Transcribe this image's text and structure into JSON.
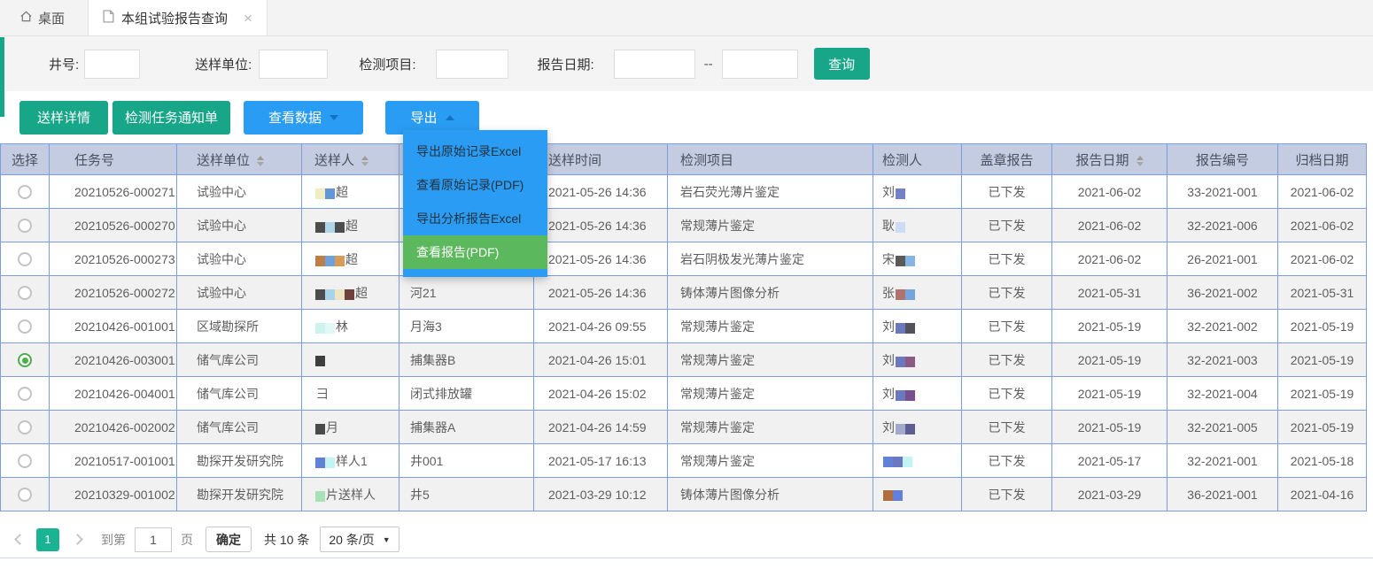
{
  "window": {
    "tab_home": "桌面",
    "tab_active": "本组试验报告查询",
    "tab_close": "×"
  },
  "filter": {
    "well_label": "井号:",
    "org_label": "送样单位:",
    "item_label": "检测项目:",
    "date_label": "报告日期:",
    "date_separator": "--",
    "search_button": "查询"
  },
  "toolbar": {
    "sample_detail": "送样详情",
    "task_notice": "检测任务通知单",
    "view_data": "查看数据",
    "export": "导出"
  },
  "export_menu": {
    "items": [
      "导出原始记录Excel",
      "查看原始记录(PDF)",
      "导出分析报告Excel",
      "查看报告(PDF)"
    ],
    "active_index": 3
  },
  "table": {
    "columns": [
      {
        "key": "select",
        "label": "选择",
        "sortable": false
      },
      {
        "key": "task",
        "label": "任务号",
        "sortable": false
      },
      {
        "key": "org",
        "label": "送样单位",
        "sortable": true
      },
      {
        "key": "sampler",
        "label": "送样人",
        "sortable": true
      },
      {
        "key": "well",
        "label": "",
        "sortable": false
      },
      {
        "key": "time",
        "label": "送样时间",
        "sortable": false
      },
      {
        "key": "item",
        "label": "检测项目",
        "sortable": false
      },
      {
        "key": "tester",
        "label": "检测人",
        "sortable": false
      },
      {
        "key": "stamp",
        "label": "盖章报告",
        "sortable": false
      },
      {
        "key": "report_date",
        "label": "报告日期",
        "sortable": true
      },
      {
        "key": "report_no",
        "label": "报告编号",
        "sortable": false
      },
      {
        "key": "archive_date",
        "label": "归档日期",
        "sortable": false
      }
    ],
    "rows": [
      {
        "selected": false,
        "task": "20210526-000271",
        "org": "试验中心",
        "sampler": {
          "text": "超",
          "mosaic": [
            "#f2ecc4",
            "#6296d6"
          ]
        },
        "well": "",
        "time": "2021-05-26 14:36",
        "item": "岩石荧光薄片鉴定",
        "tester": {
          "text": "刘",
          "mosaic": [
            "#7480c8"
          ]
        },
        "stamp": "已下发",
        "report_date": "2021-06-02",
        "report_no": "33-2021-001",
        "archive_date": "2021-06-02"
      },
      {
        "selected": false,
        "task": "20210526-000270",
        "org": "试验中心",
        "sampler": {
          "text": "超",
          "mosaic": [
            "#4d4d4d",
            "#aed6e6",
            "#4d4d4d"
          ]
        },
        "well": "",
        "time": "2021-05-26 14:36",
        "item": "常规薄片鉴定",
        "tester": {
          "text": "耿",
          "mosaic": [
            "#ccdcf2"
          ]
        },
        "stamp": "已下发",
        "report_date": "2021-06-02",
        "report_no": "32-2021-006",
        "archive_date": "2021-06-02"
      },
      {
        "selected": false,
        "task": "20210526-000273",
        "org": "试验中心",
        "sampler": {
          "text": "超",
          "mosaic": [
            "#bf7e46",
            "#6fa2dc",
            "#d79c58"
          ]
        },
        "well": "",
        "time": "2021-05-26 14:36",
        "item": "岩石阴极发光薄片鉴定",
        "tester": {
          "text": "宋",
          "mosaic": [
            "#5a5a5a",
            "#86b4e4"
          ]
        },
        "stamp": "已下发",
        "report_date": "2021-06-02",
        "report_no": "26-2021-001",
        "archive_date": "2021-06-02"
      },
      {
        "selected": false,
        "task": "20210526-000272",
        "org": "试验中心",
        "sampler": {
          "text": "超",
          "mosaic": [
            "#4d4d4d",
            "#a8d4ea",
            "#ece4c2",
            "#70403c"
          ]
        },
        "well": "河21",
        "time": "2021-05-26 14:36",
        "item": "铸体薄片图像分析",
        "tester": {
          "text": "张",
          "mosaic": [
            "#b0726e",
            "#78a4de"
          ]
        },
        "stamp": "已下发",
        "report_date": "2021-05-31",
        "report_no": "36-2021-002",
        "archive_date": "2021-05-31"
      },
      {
        "selected": false,
        "task": "20210426-001001",
        "org": "区域勘探所",
        "sampler": {
          "text": "林",
          "mosaic": [
            "#cef2f0",
            "#e2f8f6"
          ]
        },
        "well": "月海3",
        "time": "2021-04-26 09:55",
        "item": "常规薄片鉴定",
        "tester": {
          "text": "刘",
          "mosaic": [
            "#6a78c0",
            "#52525a"
          ]
        },
        "stamp": "已下发",
        "report_date": "2021-05-19",
        "report_no": "32-2021-002",
        "archive_date": "2021-05-19"
      },
      {
        "selected": true,
        "task": "20210426-003001",
        "org": "储气库公司",
        "sampler": {
          "text": "",
          "mosaic": [
            "#3e3e3e"
          ]
        },
        "well": "捕集器B",
        "time": "2021-04-26 15:01",
        "item": "常规薄片鉴定",
        "tester": {
          "text": "刘",
          "mosaic": [
            "#6a78c0",
            "#8c5a82"
          ]
        },
        "stamp": "已下发",
        "report_date": "2021-05-19",
        "report_no": "32-2021-003",
        "archive_date": "2021-05-19"
      },
      {
        "selected": false,
        "task": "20210426-004001",
        "org": "储气库公司",
        "sampler": {
          "text": "彐",
          "mosaic": []
        },
        "well": "闭式排放罐",
        "time": "2021-04-26 15:02",
        "item": "常规薄片鉴定",
        "tester": {
          "text": "刘",
          "mosaic": [
            "#6a78c0",
            "#7a4e8e"
          ]
        },
        "stamp": "已下发",
        "report_date": "2021-05-19",
        "report_no": "32-2021-004",
        "archive_date": "2021-05-19"
      },
      {
        "selected": false,
        "task": "20210426-002002",
        "org": "储气库公司",
        "sampler": {
          "text": "月",
          "mosaic": [
            "#4a4a4a"
          ]
        },
        "well": "捕集器A",
        "time": "2021-04-26 14:59",
        "item": "常规薄片鉴定",
        "tester": {
          "text": "刘",
          "mosaic": [
            "#a2aacc",
            "#5e5e92"
          ]
        },
        "stamp": "已下发",
        "report_date": "2021-05-19",
        "report_no": "32-2021-005",
        "archive_date": "2021-05-19"
      },
      {
        "selected": false,
        "task": "20210517-001001",
        "org": "勘探开发研究院",
        "sampler": {
          "text": "样人1",
          "mosaic": [
            "#6181d8",
            "#c2f4f4"
          ]
        },
        "well": "井001",
        "time": "2021-05-17 16:13",
        "item": "常规薄片鉴定",
        "tester": {
          "text": "",
          "mosaic": [
            "#6181d8",
            "#6a78c0",
            "#c2f4f4"
          ]
        },
        "stamp": "已下发",
        "report_date": "2021-05-17",
        "report_no": "32-2021-001",
        "archive_date": "2021-05-18"
      },
      {
        "selected": false,
        "task": "20210329-001002",
        "org": "勘探开发研究院",
        "sampler": {
          "text": "片送样人",
          "mosaic": [
            "#a6e2b6"
          ]
        },
        "well": "井5",
        "time": "2021-03-29 10:12",
        "item": "铸体薄片图像分析",
        "tester": {
          "text": "",
          "mosaic": [
            "#b06e3e",
            "#6181d8"
          ]
        },
        "stamp": "已下发",
        "report_date": "2021-03-29",
        "report_no": "36-2021-001",
        "archive_date": "2021-04-16"
      }
    ]
  },
  "pagination": {
    "current_page": "1",
    "goto_label": "到第",
    "goto_value": "1",
    "page_unit": "页",
    "confirm_button": "确定",
    "total_label": "共 10 条",
    "per_page": "20 条/页"
  },
  "colors": {
    "teal": "#18a689",
    "blue": "#2b9cf3",
    "menu_active_green": "#5cb85c",
    "header_bg": "#c3cce0",
    "grid_border": "#7e9ddb",
    "radio_selected_green": "#4cae4c",
    "page_active_bg": "#1ab394"
  }
}
